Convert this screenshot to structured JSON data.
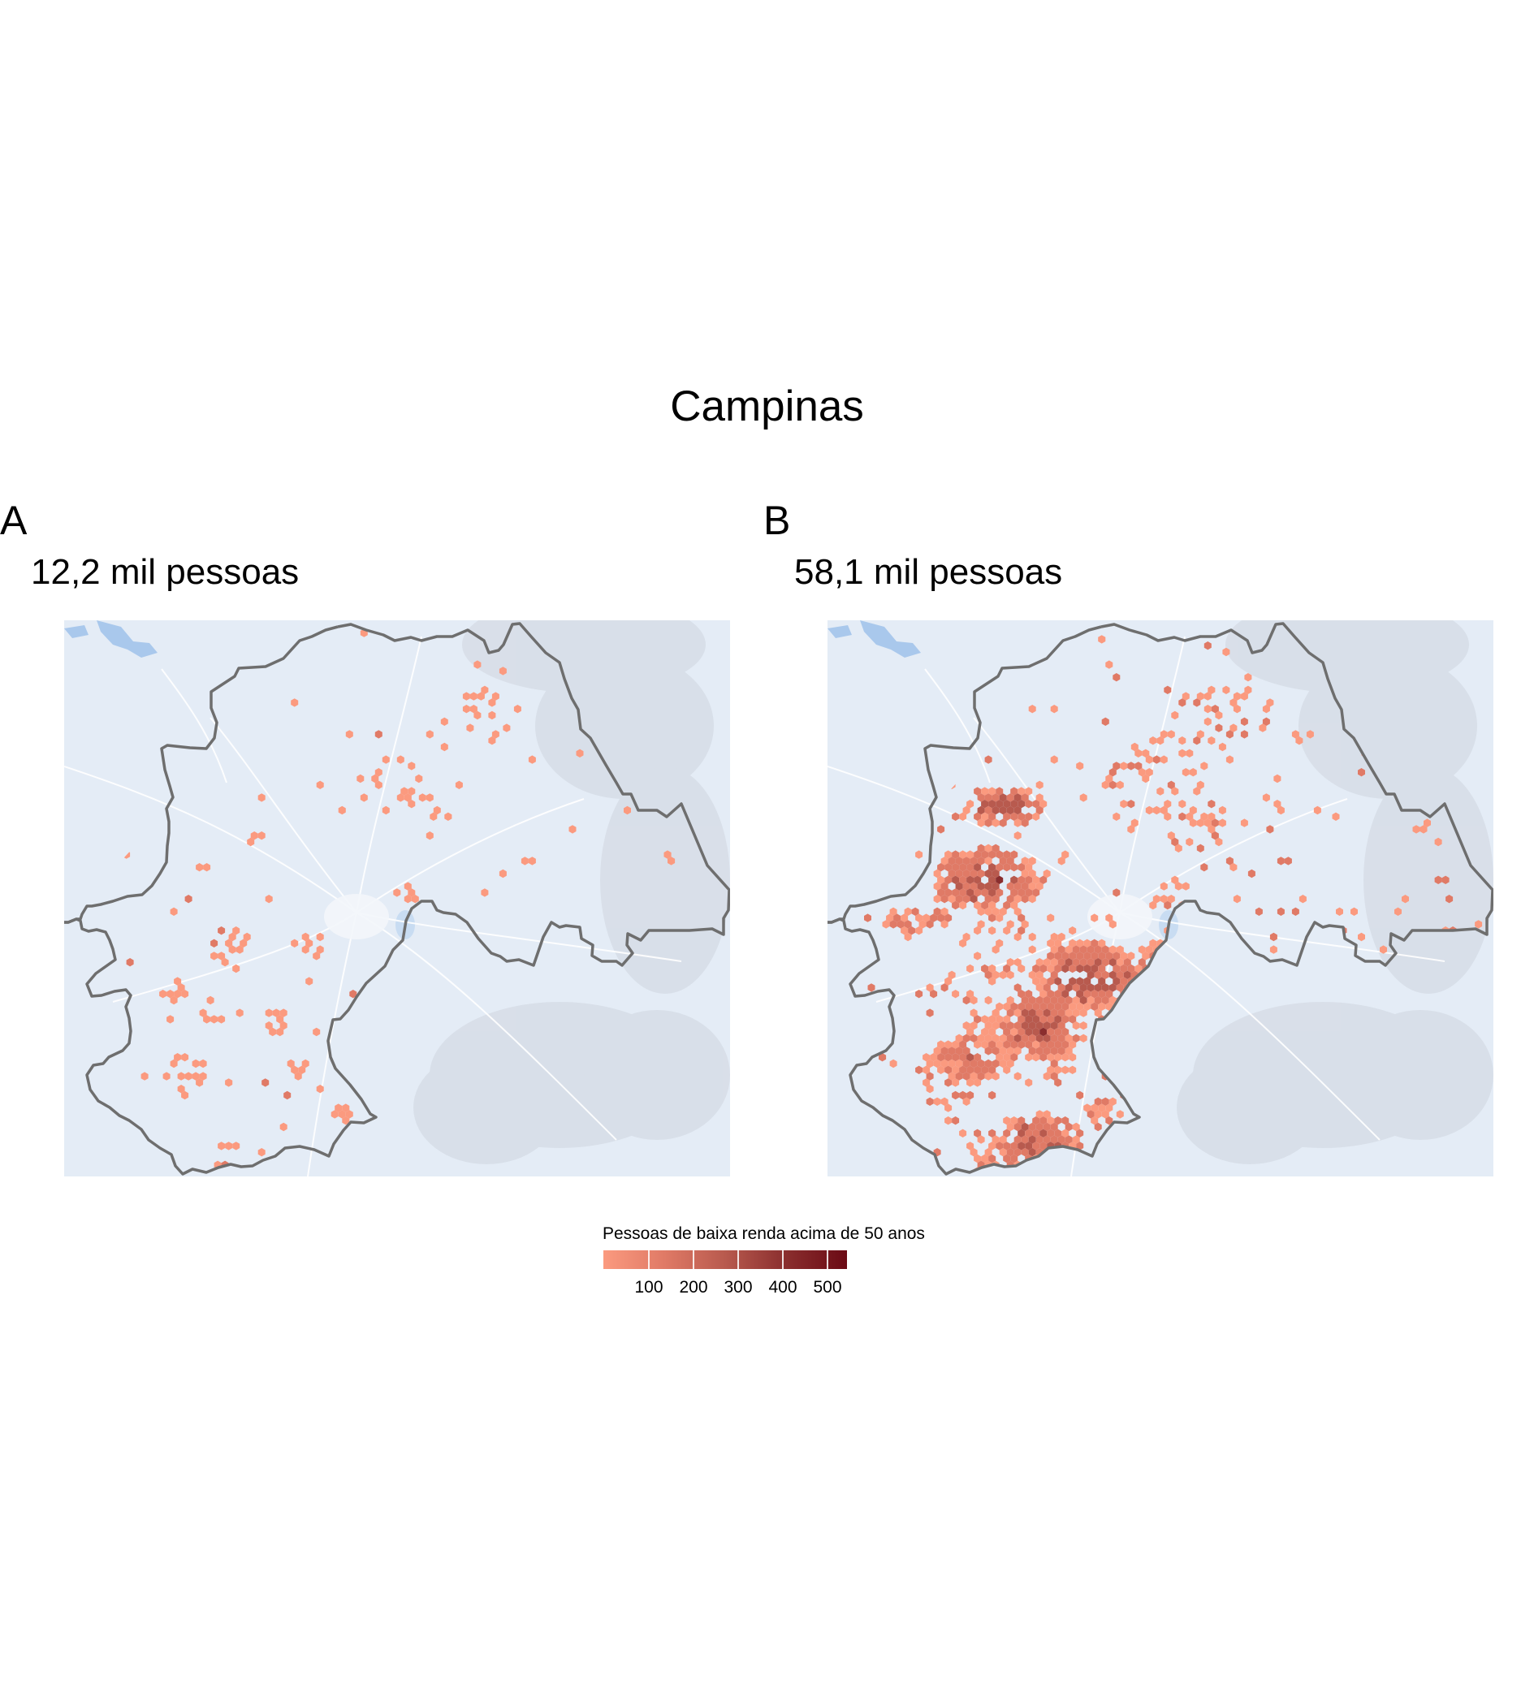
{
  "title": "Campinas",
  "panels": [
    {
      "tag": "A",
      "subtitle": "12,2 mil pessoas",
      "density": "low"
    },
    {
      "tag": "B",
      "subtitle": "58,1 mil pessoas",
      "density": "high"
    }
  ],
  "legend": {
    "title": "Pessoas de baixa renda acima de 50 anos",
    "ticks": [
      "100",
      "200",
      "300",
      "400",
      "500"
    ],
    "colors": [
      "#fb9a7f",
      "#e07a66",
      "#b85a4e",
      "#8a2e2e",
      "#6b0a14"
    ]
  },
  "colors": {
    "basemap": "#e4ecf6",
    "water": "#a9c8ec",
    "boundary": "#6e6e6e"
  }
}
